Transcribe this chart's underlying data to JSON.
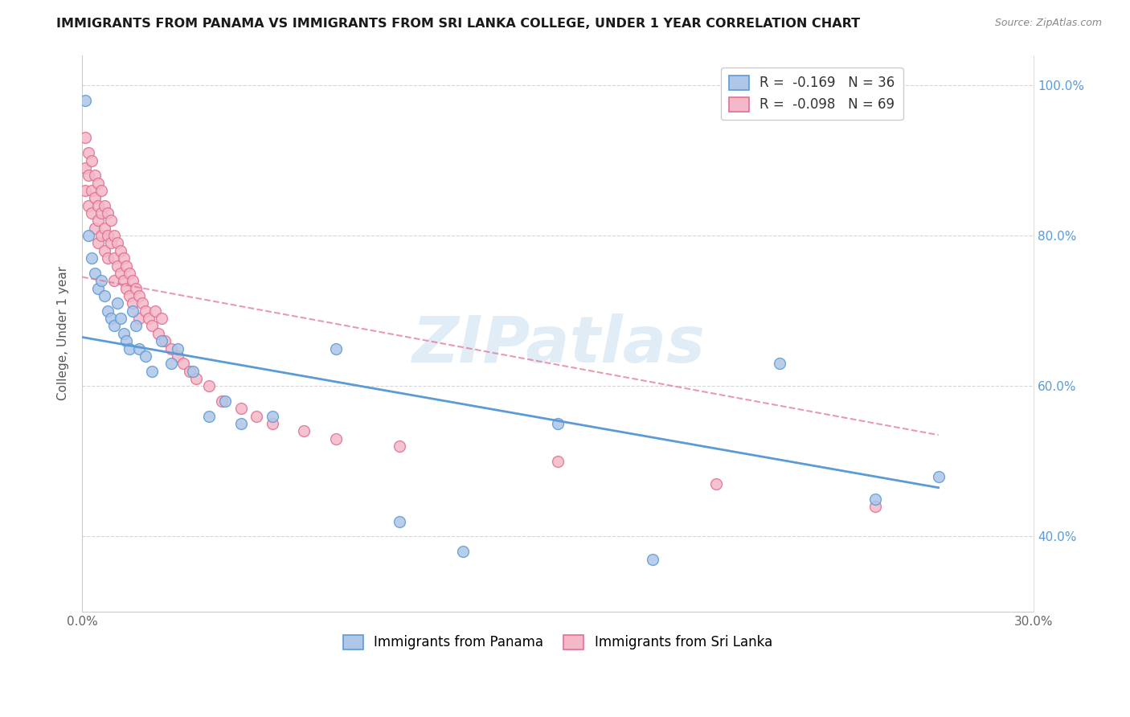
{
  "title": "IMMIGRANTS FROM PANAMA VS IMMIGRANTS FROM SRI LANKA COLLEGE, UNDER 1 YEAR CORRELATION CHART",
  "source": "Source: ZipAtlas.com",
  "ylabel": "College, Under 1 year",
  "xlim": [
    0.0,
    0.3
  ],
  "ylim": [
    0.3,
    1.04
  ],
  "x_tick_positions": [
    0.0,
    0.05,
    0.1,
    0.15,
    0.2,
    0.25,
    0.3
  ],
  "x_tick_labels": [
    "0.0%",
    "",
    "",
    "",
    "",
    "",
    "30.0%"
  ],
  "y_tick_positions": [
    0.4,
    0.6,
    0.8,
    1.0
  ],
  "y_tick_labels": [
    "40.0%",
    "60.0%",
    "80.0%",
    "100.0%"
  ],
  "panama_color": "#aec6e8",
  "panama_edge_color": "#5b9bd5",
  "srilanka_color": "#f4b8c8",
  "srilanka_edge_color": "#e07090",
  "panama_R": -0.169,
  "panama_N": 36,
  "srilanka_R": -0.098,
  "srilanka_N": 69,
  "watermark": "ZIPatlas",
  "legend_panama": "Immigrants from Panama",
  "legend_srilanka": "Immigrants from Sri Lanka",
  "panama_line_x": [
    0.0,
    0.27
  ],
  "panama_line_y": [
    0.665,
    0.465
  ],
  "srilanka_line_x": [
    0.0,
    0.27
  ],
  "srilanka_line_y": [
    0.745,
    0.535
  ],
  "panama_scatter_x": [
    0.001,
    0.002,
    0.003,
    0.004,
    0.005,
    0.006,
    0.007,
    0.008,
    0.009,
    0.01,
    0.011,
    0.012,
    0.013,
    0.014,
    0.015,
    0.016,
    0.017,
    0.018,
    0.02,
    0.022,
    0.025,
    0.028,
    0.03,
    0.035,
    0.04,
    0.045,
    0.05,
    0.06,
    0.08,
    0.1,
    0.12,
    0.15,
    0.18,
    0.22,
    0.25,
    0.27
  ],
  "panama_scatter_y": [
    0.98,
    0.8,
    0.77,
    0.75,
    0.73,
    0.74,
    0.72,
    0.7,
    0.69,
    0.68,
    0.71,
    0.69,
    0.67,
    0.66,
    0.65,
    0.7,
    0.68,
    0.65,
    0.64,
    0.62,
    0.66,
    0.63,
    0.65,
    0.62,
    0.56,
    0.58,
    0.55,
    0.56,
    0.65,
    0.42,
    0.38,
    0.55,
    0.37,
    0.63,
    0.45,
    0.48
  ],
  "srilanka_scatter_x": [
    0.001,
    0.001,
    0.001,
    0.002,
    0.002,
    0.002,
    0.003,
    0.003,
    0.003,
    0.004,
    0.004,
    0.004,
    0.005,
    0.005,
    0.005,
    0.005,
    0.006,
    0.006,
    0.006,
    0.007,
    0.007,
    0.007,
    0.008,
    0.008,
    0.008,
    0.009,
    0.009,
    0.01,
    0.01,
    0.01,
    0.011,
    0.011,
    0.012,
    0.012,
    0.013,
    0.013,
    0.014,
    0.014,
    0.015,
    0.015,
    0.016,
    0.016,
    0.017,
    0.018,
    0.018,
    0.019,
    0.02,
    0.021,
    0.022,
    0.023,
    0.024,
    0.025,
    0.026,
    0.028,
    0.03,
    0.032,
    0.034,
    0.036,
    0.04,
    0.044,
    0.05,
    0.055,
    0.06,
    0.07,
    0.08,
    0.1,
    0.15,
    0.2,
    0.25
  ],
  "srilanka_scatter_y": [
    0.93,
    0.89,
    0.86,
    0.91,
    0.88,
    0.84,
    0.9,
    0.86,
    0.83,
    0.88,
    0.85,
    0.81,
    0.87,
    0.84,
    0.82,
    0.79,
    0.86,
    0.83,
    0.8,
    0.84,
    0.81,
    0.78,
    0.83,
    0.8,
    0.77,
    0.82,
    0.79,
    0.8,
    0.77,
    0.74,
    0.79,
    0.76,
    0.78,
    0.75,
    0.77,
    0.74,
    0.76,
    0.73,
    0.75,
    0.72,
    0.74,
    0.71,
    0.73,
    0.72,
    0.69,
    0.71,
    0.7,
    0.69,
    0.68,
    0.7,
    0.67,
    0.69,
    0.66,
    0.65,
    0.64,
    0.63,
    0.62,
    0.61,
    0.6,
    0.58,
    0.57,
    0.56,
    0.55,
    0.54,
    0.53,
    0.52,
    0.5,
    0.47,
    0.44
  ]
}
